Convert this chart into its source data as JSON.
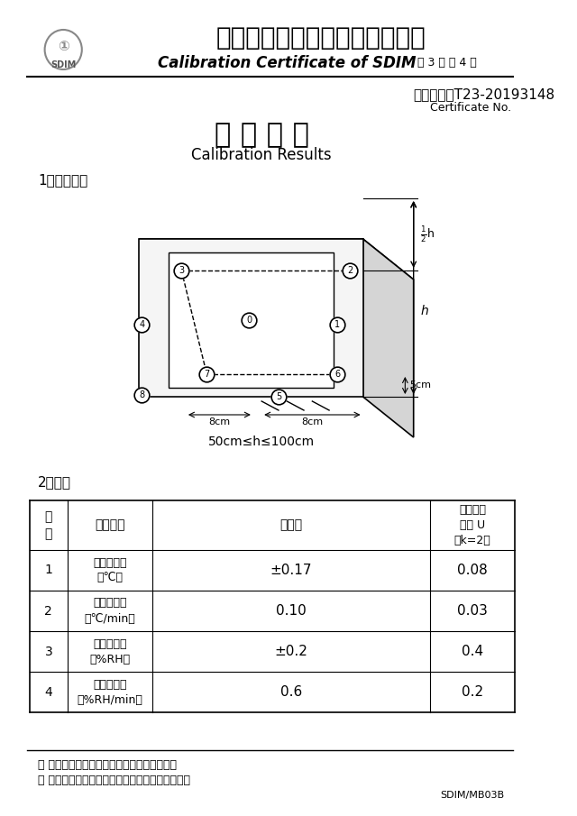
{
  "page_bg": "#ffffff",
  "header_title_cn": "山东省计量科学研究院校准证书",
  "header_title_en": "Calibration Certificate of SDIM",
  "header_page": "第 3 页 共 4 页",
  "cert_no_label": "证书编号：",
  "cert_no": "T23-20193148",
  "cert_no_en": "Certificate No.",
  "section1_title": "校 准 结 果",
  "section1_subtitle": "Calibration Results",
  "buju_label": "1、布点图：",
  "dimension_label": "50cm≤h≤100cm",
  "data_label": "2、数据",
  "table_headers": [
    "序\n号",
    "校准项目",
    "校准值",
    "扩展不确\n定度 U\n（k=2）"
  ],
  "table_rows": [
    [
      "1",
      "温度波动度\n（℃）",
      "±0.17",
      "0.08"
    ],
    [
      "2",
      "温度变化率\n（℃/min）",
      "0.10",
      "0.03"
    ],
    [
      "3",
      "湿度波动度\n（%RH）",
      "±0.2",
      "0.4"
    ],
    [
      "4",
      "湿度变化率\n（%RH/min）",
      "0.6",
      "0.2"
    ]
  ],
  "footer_line1": "＊ 未经本院书面批准，不得部分复印此证书。",
  "footer_line2": "＊ 本证书的校准结果仅对所校准的计量器具有效。",
  "footer_code": "SDIM/MB03B",
  "text_color": "#000000",
  "line_color": "#000000",
  "border_color": "#555555"
}
